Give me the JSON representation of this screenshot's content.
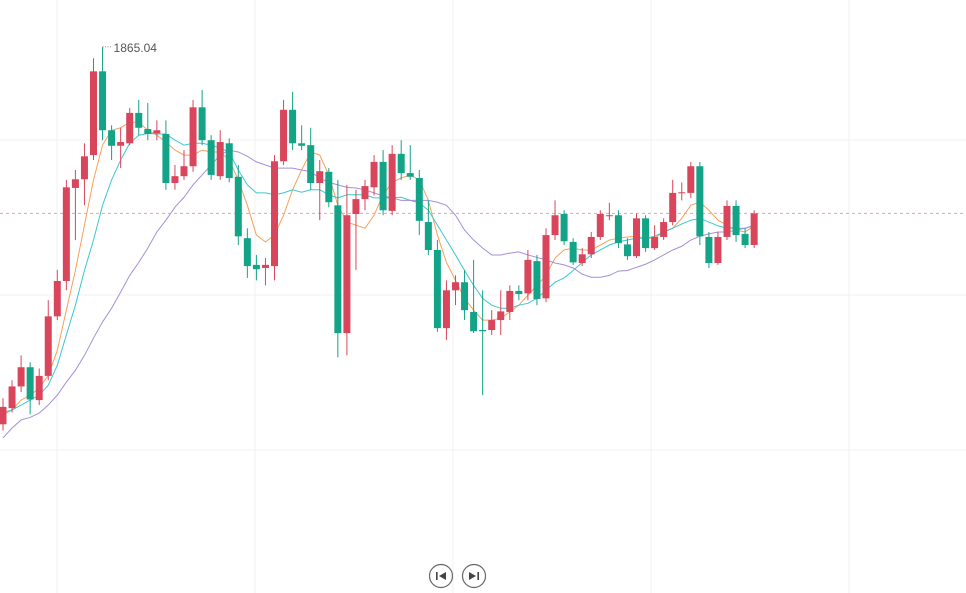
{
  "chart_data": {
    "type": "candlestick",
    "ylim": [
      1777,
      1872.6
    ],
    "up_color": "#d9465c",
    "down_color": "#13a387",
    "open": [
      1804.2,
      1806.8,
      1810.3,
      1813.4,
      1808.1,
      1812.0,
      1821.6,
      1827.3,
      1842.3,
      1843.7,
      1847.6,
      1861.1,
      1851.6,
      1849.1,
      1849.5,
      1854.4,
      1851.8,
      1851.1,
      1851.0,
      1843.1,
      1844.2,
      1845.8,
      1855.3,
      1850.0,
      1844.2,
      1849.5,
      1844.1,
      1834.2,
      1829.9,
      1829.4,
      1829.7,
      1846.6,
      1854.9,
      1849.5,
      1849.2,
      1843.1,
      1844.9,
      1839.5,
      1818.9,
      1838.1,
      1840.5,
      1842.4,
      1846.5,
      1838.6,
      1847.8,
      1844.7,
      1843.9,
      1836.8,
      1832.3,
      1819.7,
      1825.8,
      1827.1,
      1822.3,
      1819.4,
      1819.4,
      1821.0,
      1822.3,
      1825.7,
      1825.3,
      1830.5,
      1824.5,
      1834.7,
      1838.1,
      1833.6,
      1830.2,
      1831.6,
      1834.4,
      1837.8,
      1837.9,
      1833.2,
      1831.3,
      1837.4,
      1832.6,
      1834.4,
      1836.8,
      1841.5,
      1841.5,
      1845.8,
      1834.4,
      1830.2,
      1834.4,
      1839.4,
      1834.9,
      1833.1
    ],
    "high": [
      1808.4,
      1811.3,
      1815.3,
      1814.2,
      1813.2,
      1824.2,
      1829.1,
      1843.6,
      1845.2,
      1849.5,
      1863.2,
      1865.04,
      1852.4,
      1852.0,
      1855.2,
      1856.5,
      1856.0,
      1853.2,
      1853.2,
      1846.0,
      1848.4,
      1856.5,
      1858.1,
      1850.8,
      1851.6,
      1850.3,
      1846.0,
      1835.8,
      1831.5,
      1831.0,
      1847.6,
      1856.5,
      1857.8,
      1852.4,
      1852.0,
      1846.8,
      1845.5,
      1843.6,
      1842.8,
      1842.0,
      1843.6,
      1847.6,
      1848.4,
      1849.2,
      1850.0,
      1849.2,
      1845.2,
      1840.3,
      1833.9,
      1827.4,
      1828.2,
      1829.1,
      1830.7,
      1825.8,
      1822.6,
      1825.8,
      1826.6,
      1826.6,
      1832.3,
      1831.5,
      1835.8,
      1840.3,
      1838.7,
      1834.2,
      1832.6,
      1835.2,
      1838.7,
      1839.9,
      1838.7,
      1834.2,
      1838.2,
      1837.9,
      1836.3,
      1837.4,
      1843.6,
      1843.2,
      1846.5,
      1846.5,
      1835.2,
      1835.2,
      1840.3,
      1840.3,
      1835.8,
      1838.7
    ],
    "low": [
      1803.2,
      1806.1,
      1809.4,
      1805.8,
      1807.3,
      1811.3,
      1821.0,
      1825.8,
      1833.9,
      1839.5,
      1846.8,
      1850.0,
      1846.8,
      1845.5,
      1849.2,
      1850.8,
      1850.0,
      1850.0,
      1842.0,
      1842.0,
      1843.6,
      1844.9,
      1849.2,
      1843.6,
      1843.6,
      1843.2,
      1833.1,
      1827.8,
      1827.4,
      1826.6,
      1827.4,
      1846.0,
      1848.4,
      1848.4,
      1842.0,
      1837.1,
      1839.2,
      1815.0,
      1815.3,
      1829.1,
      1838.7,
      1841.1,
      1837.9,
      1837.9,
      1843.6,
      1843.6,
      1834.7,
      1831.5,
      1819.1,
      1817.8,
      1823.4,
      1821.0,
      1818.9,
      1808.9,
      1818.6,
      1818.6,
      1821.0,
      1824.2,
      1824.2,
      1823.4,
      1823.9,
      1833.9,
      1833.1,
      1829.9,
      1829.7,
      1831.0,
      1833.9,
      1837.1,
      1832.6,
      1830.7,
      1831.0,
      1832.0,
      1832.3,
      1833.9,
      1836.3,
      1840.3,
      1840.7,
      1833.1,
      1829.4,
      1829.9,
      1833.9,
      1833.6,
      1832.6,
      1832.6
    ],
    "close": [
      1807.0,
      1810.3,
      1813.4,
      1808.2,
      1812.0,
      1821.6,
      1827.3,
      1842.4,
      1843.7,
      1847.4,
      1861.1,
      1851.6,
      1849.1,
      1849.7,
      1854.4,
      1852.0,
      1851.0,
      1851.6,
      1843.1,
      1844.2,
      1845.8,
      1855.3,
      1850.0,
      1844.4,
      1849.7,
      1843.9,
      1834.5,
      1829.7,
      1829.2,
      1829.9,
      1846.6,
      1854.9,
      1849.5,
      1849.1,
      1843.1,
      1845.0,
      1840.0,
      1818.9,
      1837.9,
      1840.5,
      1842.6,
      1846.5,
      1838.7,
      1847.8,
      1844.7,
      1844.1,
      1837.0,
      1832.3,
      1819.7,
      1825.8,
      1827.1,
      1822.6,
      1819.2,
      1819.2,
      1821.0,
      1822.4,
      1825.7,
      1825.2,
      1830.7,
      1824.4,
      1834.7,
      1837.9,
      1833.7,
      1830.3,
      1831.6,
      1834.4,
      1838.1,
      1837.9,
      1833.4,
      1831.3,
      1837.4,
      1832.6,
      1834.4,
      1836.8,
      1841.5,
      1841.6,
      1845.8,
      1834.5,
      1830.2,
      1834.4,
      1839.4,
      1834.7,
      1833.1,
      1838.2
    ],
    "series": [
      {
        "color": "#f5a05a",
        "values": [
          1805.7,
          1806.5,
          1808.1,
          1808.9,
          1810.0,
          1812.1,
          1816.1,
          1822.6,
          1829.0,
          1836.3,
          1843.6,
          1849.2,
          1851.6,
          1852.0,
          1852.9,
          1852.9,
          1851.6,
          1850.8,
          1849.7,
          1848.4,
          1847.6,
          1847.6,
          1848.4,
          1848.1,
          1848.1,
          1846.8,
          1843.6,
          1839.5,
          1834.7,
          1833.6,
          1834.7,
          1837.9,
          1842.0,
          1845.2,
          1848.1,
          1847.6,
          1844.4,
          1839.5,
          1836.8,
          1836.3,
          1835.8,
          1837.9,
          1841.2,
          1843.2,
          1843.9,
          1844.4,
          1843.6,
          1840.3,
          1834.7,
          1830.3,
          1827.4,
          1824.5,
          1822.6,
          1821.0,
          1821.0,
          1821.3,
          1822.3,
          1823.4,
          1825.0,
          1826.6,
          1828.2,
          1831.0,
          1832.3,
          1832.6,
          1832.3,
          1832.3,
          1833.1,
          1833.9,
          1834.2,
          1834.4,
          1834.5,
          1834.2,
          1834.2,
          1835.2,
          1835.8,
          1837.4,
          1839.5,
          1840.0,
          1838.7,
          1837.1,
          1836.3,
          1835.5,
          1835.2,
          1836.2
        ]
      },
      {
        "color": "#3cc8d0",
        "values": [
          1806.1,
          1806.5,
          1807.3,
          1808.1,
          1808.9,
          1810.5,
          1813.7,
          1818.6,
          1823.4,
          1829.0,
          1833.9,
          1839.5,
          1843.6,
          1846.8,
          1849.5,
          1850.8,
          1851.1,
          1851.0,
          1851.0,
          1850.0,
          1849.2,
          1849.5,
          1849.5,
          1849.2,
          1848.7,
          1848.1,
          1845.2,
          1842.8,
          1841.5,
          1841.5,
          1841.2,
          1841.5,
          1842.0,
          1841.6,
          1842.0,
          1842.0,
          1841.2,
          1840.7,
          1841.2,
          1841.2,
          1841.2,
          1840.7,
          1840.7,
          1840.7,
          1840.8,
          1840.3,
          1839.9,
          1838.7,
          1836.3,
          1833.9,
          1831.5,
          1829.0,
          1826.6,
          1824.5,
          1823.4,
          1822.9,
          1822.9,
          1823.4,
          1823.7,
          1824.5,
          1825.8,
          1827.1,
          1827.8,
          1829.0,
          1830.3,
          1831.5,
          1832.3,
          1833.1,
          1833.6,
          1833.9,
          1834.2,
          1834.2,
          1834.5,
          1835.2,
          1835.8,
          1836.5,
          1837.1,
          1837.4,
          1836.8,
          1836.2,
          1835.8,
          1835.8,
          1835.8,
          1836.3
        ]
      },
      {
        "color": "#a58fd8",
        "values": [
          1802.0,
          1803.6,
          1804.9,
          1805.3,
          1806.0,
          1807.3,
          1808.9,
          1811.0,
          1812.9,
          1815.3,
          1818.1,
          1820.7,
          1822.9,
          1825.5,
          1828.2,
          1830.3,
          1832.6,
          1835.2,
          1837.1,
          1839.2,
          1840.8,
          1842.8,
          1844.4,
          1846.0,
          1847.6,
          1848.4,
          1848.1,
          1847.4,
          1846.5,
          1846.0,
          1845.5,
          1845.5,
          1845.5,
          1845.2,
          1844.9,
          1843.9,
          1843.2,
          1842.8,
          1842.4,
          1842.3,
          1842.0,
          1841.5,
          1841.0,
          1840.7,
          1840.3,
          1840.3,
          1840.3,
          1840.3,
          1840.0,
          1839.5,
          1837.9,
          1835.5,
          1833.9,
          1832.6,
          1831.5,
          1831.5,
          1831.8,
          1832.0,
          1831.5,
          1831.1,
          1830.7,
          1830.2,
          1829.9,
          1829.4,
          1828.4,
          1827.9,
          1827.9,
          1828.2,
          1828.9,
          1829.0,
          1829.5,
          1830.0,
          1830.7,
          1831.5,
          1832.3,
          1832.9,
          1833.9,
          1834.5,
          1834.9,
          1835.2,
          1835.2,
          1835.5,
          1835.8,
          1836.2
        ]
      }
    ]
  }
}
